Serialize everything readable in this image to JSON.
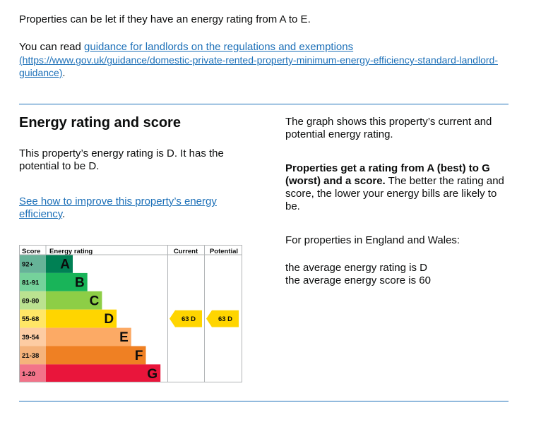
{
  "intro": {
    "let_text": "Properties can be let if they have an energy rating from A to E.",
    "read_prefix": "You can read ",
    "guidance_link": "guidance for landlords on the regulations and exemptions",
    "guidance_url": "(https://www.gov.uk/guidance/domestic-private-rented-property-minimum-energy-efficiency-standard-landlord-guidance)",
    "period": "."
  },
  "rating_section": {
    "heading": "Energy rating and score",
    "rating_text": "This property’s energy rating is D. It has the potential to be D.",
    "improve_link": "See how to improve this property’s energy efficiency",
    "improve_period": "."
  },
  "side": {
    "graph_text": "The graph shows this property’s current and potential energy rating.",
    "bold_text": "Properties get a rating from A (best) to G (worst) and a score.",
    "rest_text": " The better the rating and score, the lower your energy bills are likely to be.",
    "region_text": "For properties in England and Wales:",
    "avg_rating": "the average energy rating is D",
    "avg_score": "the average energy score is 60"
  },
  "chart_data": {
    "type": "bar",
    "headers": {
      "score": "Score",
      "rating": "Energy rating",
      "current": "Current",
      "potential": "Potential"
    },
    "bands": [
      {
        "letter": "A",
        "range": "92+",
        "color": "#008054",
        "score_bg": "#66b398"
      },
      {
        "letter": "B",
        "range": "81-91",
        "color": "#19b459",
        "score_bg": "#75d29b"
      },
      {
        "letter": "C",
        "range": "69-80",
        "color": "#8dce46",
        "score_bg": "#bbe290"
      },
      {
        "letter": "D",
        "range": "55-68",
        "color": "#ffd500",
        "score_bg": "#ffe666"
      },
      {
        "letter": "E",
        "range": "39-54",
        "color": "#fcaa65",
        "score_bg": "#fdcca3"
      },
      {
        "letter": "F",
        "range": "21-38",
        "color": "#ef8023",
        "score_bg": "#f5b37b"
      },
      {
        "letter": "G",
        "range": "1-20",
        "color": "#e9153b",
        "score_bg": "#f27389"
      }
    ],
    "current": {
      "score": 63,
      "letter": "D",
      "label": "63 D"
    },
    "potential": {
      "score": 63,
      "letter": "D",
      "label": "63 D"
    }
  }
}
